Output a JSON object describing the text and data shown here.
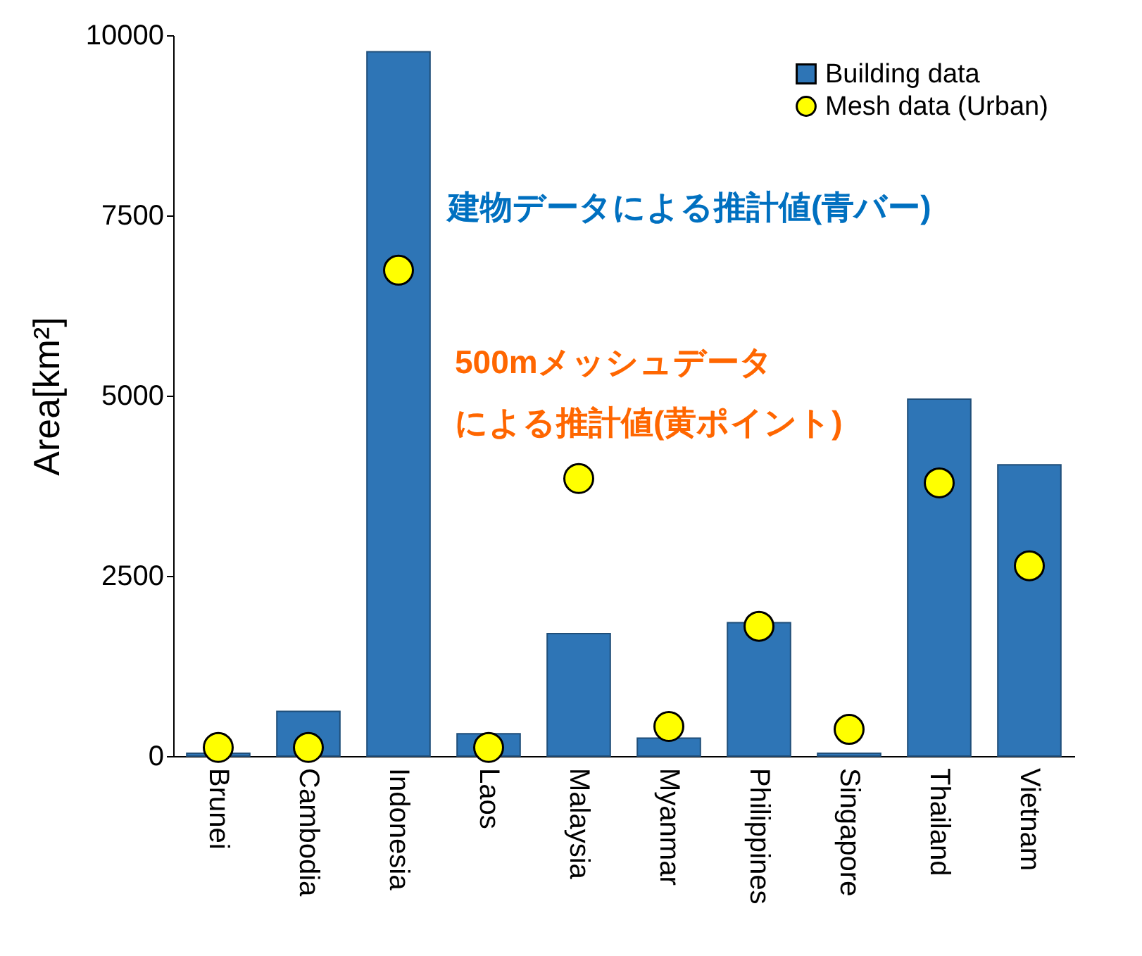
{
  "chart_data": {
    "type": "bar",
    "ylabel": "Area[km²]",
    "categories": [
      "Brunei",
      "Cambodia",
      "Indonesia",
      "Laos",
      "Malaysia",
      "Myanmar",
      "Philippines",
      "Singapore",
      "Thailand",
      "Vietnam"
    ],
    "series": [
      {
        "name": "Building data",
        "color": "#2e75b6",
        "values": [
          40,
          620,
          9770,
          310,
          1700,
          250,
          1850,
          40,
          4950,
          4040
        ]
      },
      {
        "name": "Mesh data (Urban)",
        "type": "scatter",
        "color": "#ffff00",
        "values": [
          120,
          120,
          6740,
          120,
          3850,
          410,
          1800,
          370,
          3790,
          2640
        ]
      }
    ],
    "ylim": [
      0,
      10000
    ],
    "yticks": [
      0,
      2500,
      5000,
      7500,
      10000
    ],
    "grid": false,
    "legend": "top right",
    "marker": "circle",
    "annotations": [
      "建物データによる推計値(青バー)",
      "500mメッシュデータ",
      "による推計値(黄ポイント)"
    ]
  }
}
